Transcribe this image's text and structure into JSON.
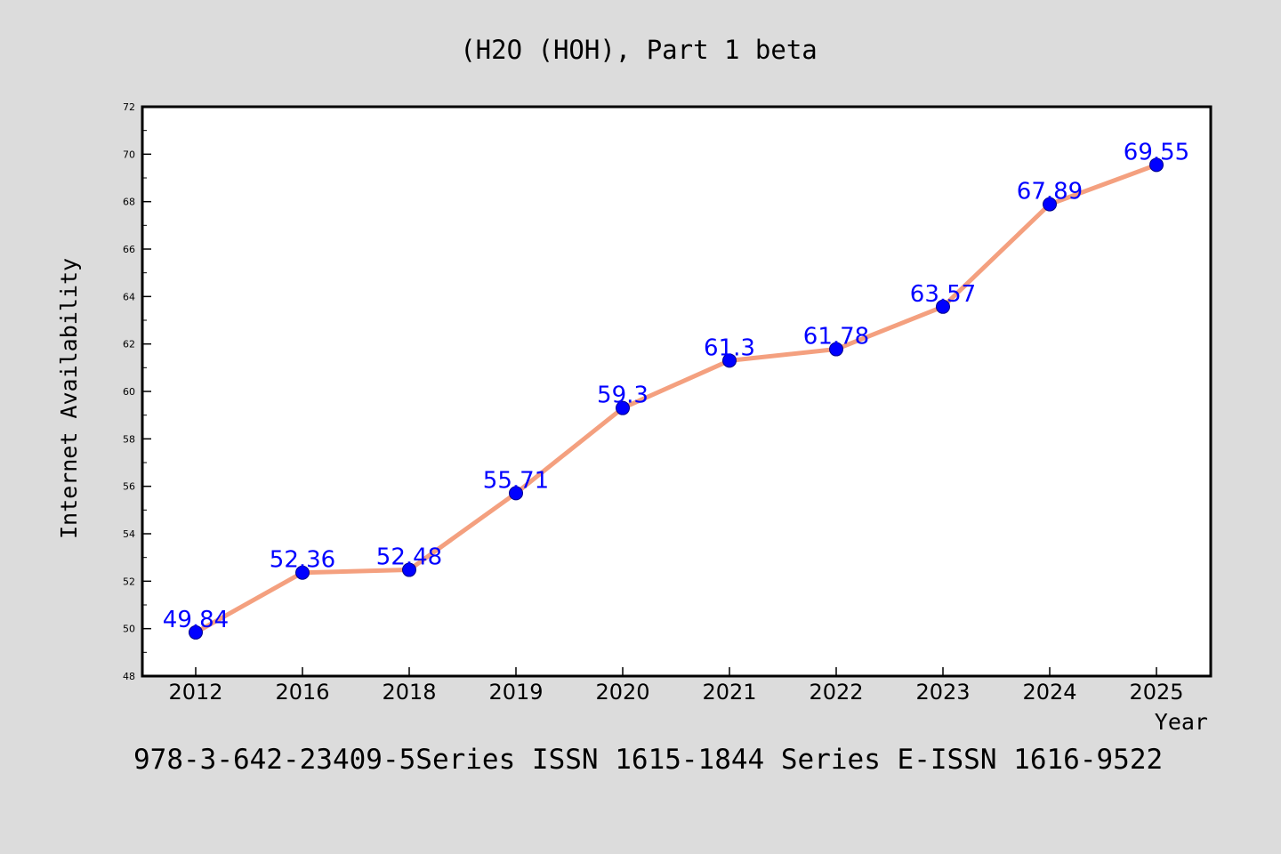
{
  "chart_data": {
    "type": "line",
    "title": "(H2O (HOH), Part 1 beta",
    "xlabel": "Year",
    "ylabel": "Internet Availability",
    "categories": [
      "2012",
      "2016",
      "2018",
      "2019",
      "2020",
      "2021",
      "2022",
      "2023",
      "2024",
      "2025"
    ],
    "series": [
      {
        "values": [
          49.84,
          52.36,
          52.48,
          55.71,
          59.3,
          61.3,
          61.78,
          63.57,
          67.89,
          69.55
        ]
      }
    ],
    "data_labels": [
      "49.84",
      "52.36",
      "52.48",
      "55.71",
      "59.3",
      "61.3",
      "61.78",
      "63.57",
      "67.89",
      "69.55"
    ],
    "ylim": [
      48,
      72
    ],
    "yticks": [
      48,
      50,
      52,
      54,
      56,
      58,
      60,
      62,
      64,
      66,
      68,
      70,
      72
    ],
    "grid": false,
    "footer": "978-3-642-23409-5Series ISSN 1615-1844 Series E-ISSN 1616-9522",
    "colors": {
      "background": "#dcdcdc",
      "plot_background": "#ffffff",
      "line": "#f4a07f",
      "marker": "#0000ff",
      "data_label": "#0000ff",
      "text": "#000000"
    }
  }
}
